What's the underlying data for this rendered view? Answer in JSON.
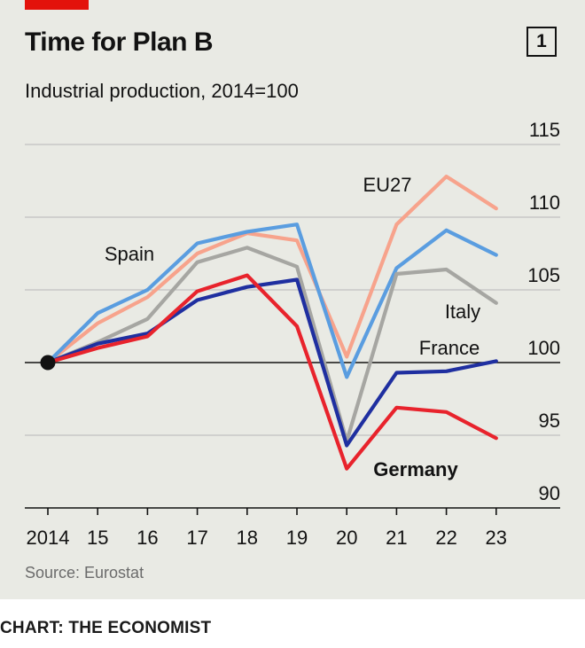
{
  "header": {
    "title": "Time for Plan B",
    "subtitle": "Industrial production, 2014=100",
    "chart_number": "1"
  },
  "footer": {
    "source": "Source: Eurostat",
    "credit": "CHART: THE ECONOMIST"
  },
  "colors": {
    "background": "#e9eae4",
    "brand_red": "#e3120b",
    "gridline": "#b7b7b7",
    "axis": "#121212"
  },
  "chart_data": {
    "type": "line",
    "title": "Time for Plan B",
    "subtitle": "Industrial production, 2014=100",
    "x": [
      "2014",
      "15",
      "16",
      "17",
      "18",
      "19",
      "20",
      "21",
      "22",
      "23"
    ],
    "ylim": [
      90,
      115
    ],
    "yticks": [
      "115",
      "110",
      "105",
      "100",
      "95",
      "90"
    ],
    "y_axis_side": "right",
    "grid": true,
    "baseline": 100,
    "series": [
      {
        "name": "EU27",
        "color": "#f7a38c",
        "label_bold": false,
        "values": [
          100,
          102.7,
          104.5,
          107.5,
          108.9,
          108.4,
          100.4,
          109.5,
          112.8,
          110.6
        ]
      },
      {
        "name": "Spain",
        "color": "#5a9de0",
        "label_bold": false,
        "values": [
          100,
          103.4,
          105.0,
          108.2,
          109.0,
          109.5,
          99.0,
          106.5,
          109.1,
          107.4
        ]
      },
      {
        "name": "Italy",
        "color": "#a6a6a2",
        "label_bold": false,
        "values": [
          100,
          101.4,
          103.0,
          106.9,
          107.9,
          106.6,
          94.6,
          106.1,
          106.4,
          104.1
        ]
      },
      {
        "name": "France",
        "color": "#1f2fa0",
        "label_bold": false,
        "values": [
          100,
          101.3,
          102.0,
          104.3,
          105.2,
          105.7,
          94.3,
          99.3,
          99.4,
          100.1
        ]
      },
      {
        "name": "Germany",
        "color": "#e8232c",
        "label_bold": true,
        "values": [
          100,
          101.0,
          101.8,
          104.9,
          106.0,
          102.5,
          92.7,
          96.9,
          96.6,
          94.8
        ]
      }
    ]
  }
}
